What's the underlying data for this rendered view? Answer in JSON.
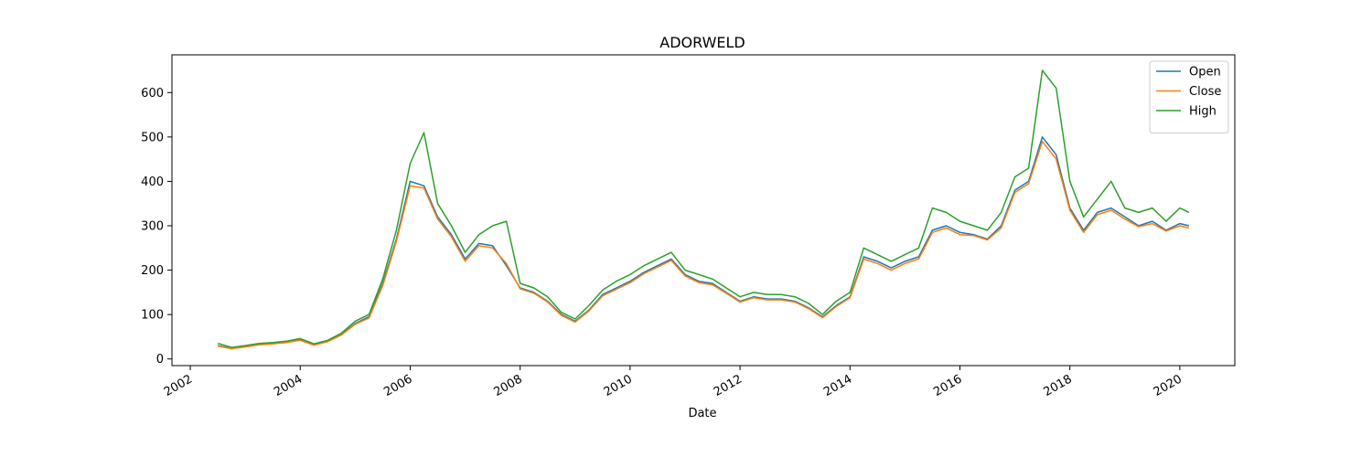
{
  "chart_data": {
    "type": "line",
    "title": "ADORWELD",
    "xlabel": "Date",
    "ylabel": "",
    "xlim": [
      "2001-09-01",
      "2021-01-01"
    ],
    "ylim": [
      -15,
      685
    ],
    "x_ticks": [
      "2002",
      "2004",
      "2006",
      "2008",
      "2010",
      "2012",
      "2014",
      "2016",
      "2018",
      "2020"
    ],
    "y_ticks": [
      0,
      100,
      200,
      300,
      400,
      500,
      600
    ],
    "grid": false,
    "legend_position": "top-right",
    "x": [
      "2002-07",
      "2002-10",
      "2003-01",
      "2003-04",
      "2003-07",
      "2003-10",
      "2004-01",
      "2004-04",
      "2004-07",
      "2004-10",
      "2005-01",
      "2005-04",
      "2005-07",
      "2005-10",
      "2006-01",
      "2006-04",
      "2006-07",
      "2006-10",
      "2007-01",
      "2007-04",
      "2007-07",
      "2007-10",
      "2008-01",
      "2008-04",
      "2008-07",
      "2008-10",
      "2009-01",
      "2009-04",
      "2009-07",
      "2009-10",
      "2010-01",
      "2010-04",
      "2010-07",
      "2010-10",
      "2011-01",
      "2011-04",
      "2011-07",
      "2011-10",
      "2012-01",
      "2012-04",
      "2012-07",
      "2012-10",
      "2013-01",
      "2013-04",
      "2013-07",
      "2013-10",
      "2014-01",
      "2014-04",
      "2014-07",
      "2014-10",
      "2015-01",
      "2015-04",
      "2015-07",
      "2015-10",
      "2016-01",
      "2016-04",
      "2016-07",
      "2016-10",
      "2017-01",
      "2017-04",
      "2017-07",
      "2017-10",
      "2018-01",
      "2018-04",
      "2018-07",
      "2018-10",
      "2019-01",
      "2019-04",
      "2019-07",
      "2019-10",
      "2020-01",
      "2020-03"
    ],
    "series": [
      {
        "name": "Open",
        "color": "#1f77b4",
        "values": [
          30,
          24,
          28,
          33,
          35,
          38,
          43,
          32,
          40,
          55,
          80,
          95,
          170,
          270,
          400,
          390,
          320,
          280,
          225,
          260,
          255,
          210,
          160,
          150,
          130,
          100,
          85,
          110,
          145,
          160,
          175,
          195,
          210,
          225,
          190,
          175,
          170,
          150,
          130,
          140,
          135,
          135,
          130,
          115,
          95,
          120,
          140,
          230,
          220,
          205,
          220,
          230,
          290,
          300,
          285,
          280,
          270,
          300,
          380,
          400,
          500,
          460,
          340,
          290,
          330,
          340,
          320,
          300,
          310,
          290,
          305,
          300
        ]
      },
      {
        "name": "Close",
        "color": "#ff7f0e",
        "values": [
          29,
          23,
          27,
          32,
          34,
          37,
          42,
          31,
          39,
          54,
          78,
          92,
          165,
          265,
          390,
          385,
          315,
          275,
          220,
          255,
          250,
          215,
          158,
          148,
          128,
          98,
          83,
          108,
          142,
          157,
          172,
          192,
          207,
          222,
          187,
          172,
          167,
          148,
          128,
          138,
          133,
          133,
          128,
          113,
          93,
          118,
          138,
          225,
          215,
          200,
          215,
          225,
          285,
          295,
          280,
          278,
          268,
          295,
          375,
          395,
          490,
          450,
          335,
          285,
          325,
          335,
          315,
          298,
          305,
          288,
          300,
          295
        ]
      },
      {
        "name": "High",
        "color": "#2ca02c",
        "values": [
          35,
          26,
          30,
          35,
          37,
          40,
          46,
          34,
          42,
          58,
          85,
          100,
          180,
          290,
          440,
          510,
          350,
          300,
          240,
          280,
          300,
          310,
          170,
          160,
          140,
          105,
          90,
          120,
          155,
          175,
          190,
          210,
          225,
          240,
          200,
          190,
          180,
          160,
          140,
          150,
          145,
          145,
          140,
          125,
          100,
          130,
          150,
          250,
          235,
          220,
          235,
          250,
          340,
          330,
          310,
          300,
          290,
          330,
          410,
          430,
          650,
          610,
          400,
          320,
          360,
          400,
          340,
          330,
          340,
          310,
          340,
          330
        ]
      }
    ]
  }
}
